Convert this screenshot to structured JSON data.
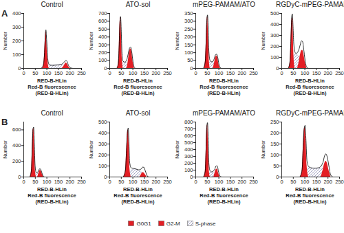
{
  "row_labels": [
    "A",
    "B"
  ],
  "chart_data": [
    {
      "type": "area",
      "title": "Control",
      "x_label": "RED-B-HLin\nRed-B fluorescence\n(RED-B-HLin)",
      "y_label": "Number",
      "xlim": [
        0,
        250
      ],
      "xticks": [
        0,
        50,
        100,
        150,
        200,
        250
      ],
      "ylim": [
        0,
        400
      ],
      "yticks": [
        0,
        100,
        200,
        300,
        400
      ],
      "series": [
        {
          "name": "G0G1",
          "type": "area",
          "color": "#e31e24",
          "x": [
            80,
            85,
            90,
            93,
            96,
            99,
            102,
            106,
            110
          ],
          "values": [
            0,
            20,
            110,
            220,
            270,
            200,
            100,
            25,
            0
          ]
        },
        {
          "name": "G2-M",
          "type": "area",
          "color": "#e31e24",
          "x": [
            165,
            172,
            178,
            183,
            188,
            194,
            200
          ],
          "values": [
            0,
            12,
            30,
            40,
            32,
            12,
            0
          ]
        },
        {
          "name": "S-phase",
          "type": "hatch",
          "color": "#8c8cb4",
          "x": [
            96,
            105,
            120,
            140,
            160,
            175,
            185
          ],
          "values": [
            0,
            20,
            22,
            24,
            25,
            22,
            0
          ]
        },
        {
          "type": "line",
          "color": "#000000",
          "x": [
            75,
            85,
            90,
            93,
            96,
            99,
            102,
            106,
            112,
            125,
            140,
            160,
            172,
            178,
            183,
            188,
            194,
            205,
            215
          ],
          "values": [
            0,
            25,
            115,
            225,
            280,
            210,
            115,
            45,
            25,
            22,
            24,
            28,
            40,
            52,
            58,
            48,
            20,
            3,
            0
          ]
        }
      ]
    },
    {
      "type": "area",
      "title": "ATO-sol",
      "x_label": "RED-B-HLin\nRed-B fluorescence\n(RED-B-HLin)",
      "y_label": "Number",
      "xlim": [
        0,
        250
      ],
      "xticks": [
        0,
        50,
        100,
        150,
        200,
        250
      ],
      "ylim": [
        0,
        700
      ],
      "yticks": [
        0,
        100,
        200,
        300,
        400,
        500,
        600,
        700
      ],
      "series": [
        {
          "name": "G0G1",
          "type": "area",
          "color": "#e31e24",
          "x": [
            32,
            37,
            41,
            44,
            47,
            50,
            53,
            58
          ],
          "values": [
            0,
            60,
            300,
            580,
            650,
            450,
            150,
            0
          ]
        },
        {
          "name": "G2-M",
          "type": "area",
          "color": "#e31e24",
          "x": [
            72,
            78,
            83,
            87,
            91,
            95,
            100,
            106
          ],
          "values": [
            0,
            60,
            170,
            235,
            250,
            200,
            90,
            0
          ]
        },
        {
          "name": "S-phase",
          "type": "hatch",
          "color": "#8c8cb4",
          "x": [
            46,
            55,
            65,
            75,
            85,
            92
          ],
          "values": [
            0,
            60,
            75,
            70,
            40,
            0
          ]
        },
        {
          "type": "line",
          "color": "#000000",
          "x": [
            30,
            37,
            41,
            44,
            47,
            50,
            53,
            58,
            65,
            72,
            78,
            83,
            87,
            91,
            95,
            100,
            106,
            112
          ],
          "values": [
            0,
            60,
            310,
            590,
            660,
            470,
            190,
            90,
            80,
            95,
            160,
            230,
            265,
            270,
            215,
            100,
            15,
            0
          ]
        }
      ]
    },
    {
      "type": "area",
      "title": "mPEG-PAMAM/ATO",
      "x_label": "RED-B-HLin\nRed-B fluorescence\n(RED-B-HLin)",
      "y_label": "Number",
      "xlim": [
        0,
        250
      ],
      "xticks": [
        0,
        50,
        100,
        150,
        200,
        250
      ],
      "ylim": [
        0,
        350
      ],
      "yticks": [
        0,
        50,
        100,
        150,
        200,
        250,
        300,
        350
      ],
      "series": [
        {
          "name": "G0G1",
          "type": "area",
          "color": "#e31e24",
          "x": [
            35,
            41,
            45,
            48,
            51,
            54,
            57,
            62
          ],
          "values": [
            0,
            40,
            170,
            300,
            330,
            230,
            80,
            0
          ]
        },
        {
          "name": "G2-M",
          "type": "area",
          "color": "#e31e24",
          "x": [
            75,
            80,
            85,
            90,
            95,
            100,
            106
          ],
          "values": [
            0,
            30,
            65,
            80,
            65,
            25,
            0
          ]
        },
        {
          "name": "S-phase",
          "type": "hatch",
          "color": "#8c8cb4",
          "x": [
            50,
            58,
            66,
            74,
            82,
            92
          ],
          "values": [
            0,
            35,
            40,
            40,
            30,
            0
          ]
        },
        {
          "type": "line",
          "color": "#000000",
          "x": [
            33,
            41,
            45,
            48,
            51,
            54,
            57,
            62,
            68,
            75,
            80,
            85,
            90,
            95,
            100,
            106,
            112
          ],
          "values": [
            0,
            42,
            175,
            305,
            340,
            245,
            105,
            50,
            42,
            45,
            62,
            85,
            90,
            72,
            30,
            5,
            0
          ]
        }
      ]
    },
    {
      "type": "area",
      "title": "RGDyC-mPEG-PAMAM/ATO",
      "x_label": "RED-B-HLin\nRed-B fluorescence\n(RED-B-HLin)",
      "y_label": "Number",
      "xlim": [
        0,
        250
      ],
      "xticks": [
        0,
        50,
        100,
        150,
        200,
        250
      ],
      "ylim": [
        0,
        500
      ],
      "yticks": [
        0,
        100,
        200,
        300,
        400,
        500
      ],
      "series": [
        {
          "name": "G0G1",
          "type": "area",
          "color": "#e31e24",
          "x": [
            30,
            36,
            40,
            43,
            46,
            49,
            52,
            57
          ],
          "values": [
            0,
            60,
            260,
            430,
            460,
            330,
            120,
            0
          ]
        },
        {
          "name": "G2-M",
          "type": "area",
          "color": "#e31e24",
          "x": [
            68,
            74,
            80,
            85,
            90,
            95,
            101,
            108
          ],
          "values": [
            0,
            50,
            120,
            160,
            165,
            130,
            60,
            0
          ]
        },
        {
          "name": "S-phase",
          "type": "hatch",
          "color": "#8c8cb4",
          "x": [
            44,
            52,
            60,
            68,
            76,
            86,
            95
          ],
          "values": [
            0,
            110,
            125,
            120,
            105,
            60,
            0
          ]
        },
        {
          "type": "line",
          "color": "#000000",
          "x": [
            28,
            36,
            40,
            43,
            46,
            49,
            52,
            57,
            62,
            68,
            74,
            80,
            85,
            90,
            95,
            101,
            108,
            115
          ],
          "values": [
            0,
            70,
            290,
            470,
            495,
            380,
            230,
            150,
            135,
            145,
            170,
            215,
            250,
            245,
            175,
            75,
            10,
            0
          ]
        }
      ]
    },
    {
      "type": "area",
      "title": "Control",
      "x_label": "RED-B-HLin\nRed-B fluorescence\n(RED-B-HLin)",
      "y_label": "Number",
      "xlim": [
        0,
        250
      ],
      "xticks": [
        0,
        50,
        100,
        150,
        200,
        250
      ],
      "ylim": [
        0,
        700
      ],
      "yticks": [
        0,
        200,
        400,
        600
      ],
      "series": [
        {
          "name": "G0G1",
          "type": "area",
          "color": "#e31e24",
          "x": [
            28,
            33,
            37,
            40,
            43,
            46,
            49,
            54
          ],
          "values": [
            0,
            80,
            380,
            600,
            620,
            400,
            120,
            0
          ]
        },
        {
          "name": "G2-M",
          "type": "area",
          "color": "#e31e24",
          "x": [
            60,
            65,
            70,
            75,
            80,
            86
          ],
          "values": [
            0,
            50,
            85,
            75,
            35,
            0
          ]
        },
        {
          "name": "S-phase",
          "type": "hatch",
          "color": "#8c8cb4",
          "x": [
            44,
            50,
            56,
            62,
            70,
            80
          ],
          "values": [
            0,
            40,
            45,
            40,
            25,
            0
          ]
        },
        {
          "type": "line",
          "color": "#000000",
          "x": [
            26,
            33,
            37,
            40,
            43,
            46,
            49,
            54,
            60,
            65,
            70,
            75,
            80,
            86,
            92
          ],
          "values": [
            0,
            85,
            390,
            610,
            635,
            420,
            150,
            55,
            60,
            90,
            105,
            85,
            40,
            5,
            0
          ]
        }
      ]
    },
    {
      "type": "area",
      "title": "ATO-sol",
      "x_label": "RED-B-HLin\nRed-B fluorescence\n(RED-B-HLin)",
      "y_label": "Number",
      "xlim": [
        0,
        250
      ],
      "xticks": [
        0,
        50,
        100,
        150,
        200,
        250
      ],
      "ylim": [
        0,
        500
      ],
      "yticks": [
        0,
        100,
        200,
        300,
        400,
        500
      ],
      "series": [
        {
          "name": "G0G1",
          "type": "area",
          "color": "#e31e24",
          "x": [
            60,
            68,
            73,
            77,
            80,
            83,
            86,
            92
          ],
          "values": [
            0,
            60,
            260,
            410,
            430,
            300,
            100,
            0
          ]
        },
        {
          "name": "G2-M",
          "type": "area",
          "color": "#e31e24",
          "x": [
            130,
            137,
            143,
            148,
            154,
            160
          ],
          "values": [
            0,
            25,
            40,
            38,
            20,
            0
          ]
        },
        {
          "name": "S-phase",
          "type": "hatch",
          "color": "#8c8cb4",
          "x": [
            84,
            95,
            110,
            125,
            140,
            150
          ],
          "values": [
            0,
            60,
            70,
            60,
            40,
            0
          ]
        },
        {
          "type": "line",
          "color": "#000000",
          "x": [
            58,
            68,
            73,
            77,
            80,
            83,
            86,
            92,
            100,
            110,
            125,
            137,
            143,
            148,
            154,
            162,
            170
          ],
          "values": [
            0,
            65,
            270,
            420,
            445,
            320,
            140,
            85,
            78,
            75,
            65,
            75,
            90,
            88,
            55,
            10,
            0
          ]
        }
      ]
    },
    {
      "type": "area",
      "title": "mPEG-PAMAM/ATO",
      "x_label": "RED-B-HLin\nRed-B fluorescence\n(RED-B-HLin)",
      "y_label": "Number",
      "xlim": [
        0,
        250
      ],
      "xticks": [
        0,
        50,
        100,
        150,
        200,
        250
      ],
      "ylim": [
        0,
        800
      ],
      "yticks": [
        0,
        100,
        200,
        300,
        400,
        500,
        600,
        700,
        800
      ],
      "series": [
        {
          "name": "G0G1",
          "type": "area",
          "color": "#e31e24",
          "x": [
            35,
            41,
            45,
            48,
            51,
            54,
            57,
            62
          ],
          "values": [
            0,
            80,
            430,
            720,
            760,
            500,
            150,
            0
          ]
        },
        {
          "name": "G2-M",
          "type": "area",
          "color": "#e31e24",
          "x": [
            78,
            83,
            88,
            93,
            98,
            104
          ],
          "values": [
            0,
            60,
            110,
            115,
            60,
            0
          ]
        },
        {
          "name": "S-phase",
          "type": "hatch",
          "color": "#8c8cb4",
          "x": [
            52,
            60,
            68,
            76,
            86,
            95
          ],
          "values": [
            0,
            55,
            65,
            60,
            40,
            0
          ]
        },
        {
          "type": "line",
          "color": "#000000",
          "x": [
            33,
            41,
            45,
            48,
            51,
            54,
            57,
            62,
            68,
            76,
            83,
            88,
            93,
            98,
            104,
            112
          ],
          "values": [
            0,
            85,
            440,
            740,
            790,
            530,
            190,
            90,
            75,
            85,
            120,
            160,
            160,
            90,
            15,
            0
          ]
        }
      ]
    },
    {
      "type": "area",
      "title": "RGDyC-mPEG-PAMAM/ATO",
      "x_label": "RED-B-HLin\nRed-B fluorescence\n(RED-B-HLin)",
      "y_label": "Number",
      "xlim": [
        0,
        250
      ],
      "xticks": [
        0,
        50,
        100,
        150,
        200,
        250
      ],
      "ylim": [
        0,
        250
      ],
      "yticks": [
        0,
        50,
        100,
        150,
        200,
        250
      ],
      "series": [
        {
          "name": "G0G1",
          "type": "area",
          "color": "#e31e24",
          "x": [
            80,
            88,
            93,
            97,
            101,
            105,
            109,
            116
          ],
          "values": [
            0,
            30,
            140,
            215,
            225,
            150,
            50,
            0
          ]
        },
        {
          "name": "G2-M",
          "type": "area",
          "color": "#e31e24",
          "x": [
            170,
            178,
            185,
            191,
            197,
            204,
            212
          ],
          "values": [
            0,
            30,
            60,
            72,
            62,
            30,
            0
          ]
        },
        {
          "name": "S-phase",
          "type": "hatch",
          "color": "#8c8cb4",
          "x": [
            103,
            115,
            130,
            150,
            170,
            190,
            200
          ],
          "values": [
            0,
            40,
            40,
            38,
            38,
            30,
            0
          ]
        },
        {
          "type": "line",
          "color": "#000000",
          "x": [
            78,
            88,
            93,
            97,
            101,
            105,
            109,
            116,
            125,
            140,
            160,
            178,
            185,
            191,
            197,
            204,
            212,
            222
          ],
          "values": [
            0,
            32,
            145,
            220,
            235,
            165,
            75,
            48,
            42,
            40,
            42,
            65,
            95,
            105,
            90,
            50,
            8,
            0
          ]
        }
      ]
    }
  ]
}
